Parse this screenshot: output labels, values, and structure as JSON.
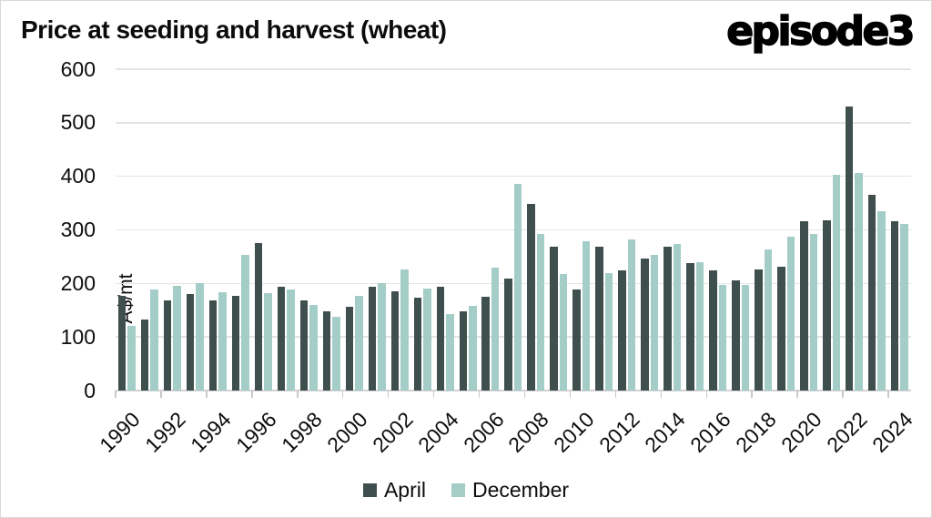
{
  "header": {
    "title": "Price at seeding and harvest (wheat)",
    "logo_text": "episode3"
  },
  "colors": {
    "april": "#3f4f4d",
    "december": "#a5cdc8",
    "grid": "#e4e4e4",
    "axis": "#d2d2d2",
    "text": "#0d0d0d",
    "border": "#d9d9d9"
  },
  "chart_data": {
    "type": "bar",
    "title": "Price at seeding and harvest (wheat)",
    "xlabel": "",
    "ylabel": "A$/mt",
    "ylim": [
      0,
      600
    ],
    "yticks": [
      0,
      100,
      200,
      300,
      400,
      500,
      600
    ],
    "grid": "horizontal",
    "legend_position": "bottom",
    "categories": [
      1990,
      1991,
      1992,
      1993,
      1994,
      1995,
      1996,
      1997,
      1998,
      1999,
      2000,
      2001,
      2002,
      2003,
      2004,
      2005,
      2006,
      2007,
      2008,
      2009,
      2010,
      2011,
      2012,
      2013,
      2014,
      2015,
      2016,
      2017,
      2018,
      2019,
      2020,
      2021,
      2022,
      2023,
      2024
    ],
    "xtick_labels": [
      "1990",
      "1992",
      "1994",
      "1996",
      "1998",
      "2000",
      "2002",
      "2004",
      "2006",
      "2008",
      "2010",
      "2012",
      "2014",
      "2016",
      "2018",
      "2020",
      "2022",
      "2024"
    ],
    "series": [
      {
        "name": "April",
        "color": "#3f4f4d",
        "values": [
          176,
          132,
          168,
          181,
          168,
          176,
          275,
          193,
          168,
          148,
          156,
          194,
          186,
          173,
          194,
          148,
          175,
          209,
          348,
          268,
          188,
          268,
          224,
          247,
          268,
          238,
          224,
          206,
          226,
          232,
          316,
          318,
          530,
          365,
          317
        ]
      },
      {
        "name": "December",
        "color": "#a5cdc8",
        "values": [
          121,
          188,
          195,
          201,
          183,
          253,
          182,
          188,
          160,
          137,
          177,
          201,
          226,
          191,
          143,
          158,
          230,
          386,
          292,
          217,
          279,
          220,
          282,
          254,
          274,
          239,
          198,
          197,
          264,
          287,
          292,
          403,
          406,
          335,
          311
        ]
      }
    ]
  },
  "legend": {
    "items": [
      {
        "label": "April",
        "color": "#3f4f4d"
      },
      {
        "label": "December",
        "color": "#a5cdc8"
      }
    ]
  }
}
